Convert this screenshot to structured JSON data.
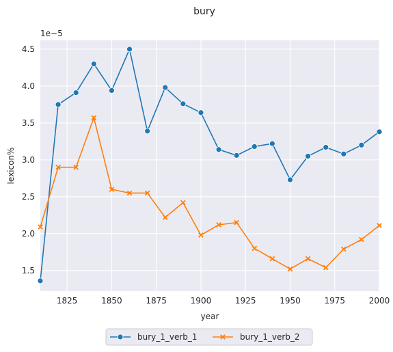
{
  "chart_data": {
    "type": "line",
    "title": "bury",
    "xlabel": "year",
    "ylabel": "lexicon%",
    "y_offset_label": "1e−5",
    "xlim": [
      1810,
      2000
    ],
    "ylim": [
      1.22,
      4.62
    ],
    "x_ticks": [
      1825,
      1850,
      1875,
      1900,
      1925,
      1950,
      1975,
      2000
    ],
    "y_ticks": [
      1.5,
      2.0,
      2.5,
      3.0,
      3.5,
      4.0,
      4.5
    ],
    "x_tick_labels": [
      "1825",
      "1850",
      "1875",
      "1900",
      "1925",
      "1950",
      "1975",
      "2000"
    ],
    "y_tick_labels": [
      "1.5",
      "2.0",
      "2.5",
      "3.0",
      "3.5",
      "4.0",
      "4.5"
    ],
    "grid": true,
    "legend_position": "bottom-center",
    "x": [
      1810,
      1820,
      1830,
      1840,
      1850,
      1860,
      1870,
      1880,
      1890,
      1900,
      1910,
      1920,
      1930,
      1940,
      1950,
      1960,
      1970,
      1980,
      1990,
      2000
    ],
    "series": [
      {
        "name": "bury_1_verb_1",
        "color": "#1f77b4",
        "marker": "circle",
        "values": [
          1.36,
          3.75,
          3.91,
          4.3,
          3.94,
          4.5,
          3.39,
          3.98,
          3.76,
          3.64,
          3.14,
          3.06,
          3.18,
          3.22,
          2.73,
          3.05,
          3.17,
          3.08,
          3.2,
          3.38
        ]
      },
      {
        "name": "bury_1_verb_2",
        "color": "#ff7f0e",
        "marker": "x",
        "values": [
          2.09,
          2.9,
          2.9,
          3.57,
          2.6,
          2.55,
          2.55,
          2.22,
          2.42,
          1.98,
          2.12,
          2.15,
          1.8,
          1.66,
          1.52,
          1.66,
          1.54,
          1.79,
          1.92,
          2.11
        ]
      }
    ]
  }
}
